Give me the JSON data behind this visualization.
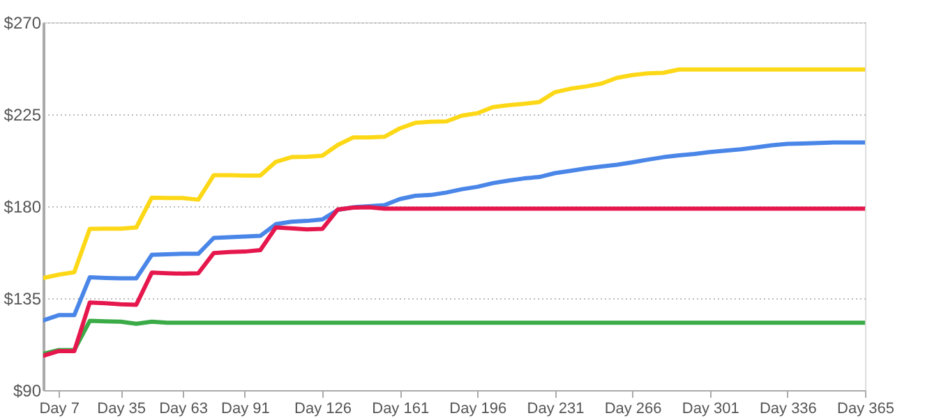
{
  "chart_data": {
    "type": "line",
    "categories": [
      null,
      "Day 7",
      null,
      null,
      null,
      "Day 35",
      null,
      null,
      null,
      "Day 63",
      null,
      null,
      null,
      "Day 91",
      null,
      null,
      null,
      null,
      "Day 126",
      null,
      null,
      null,
      null,
      "Day 161",
      null,
      null,
      null,
      null,
      "Day 196",
      null,
      null,
      null,
      null,
      "Day 231",
      null,
      null,
      null,
      null,
      "Day 266",
      null,
      null,
      null,
      null,
      "Day 301",
      null,
      null,
      null,
      null,
      "Day 336",
      null,
      null,
      null,
      null,
      "Day 365"
    ],
    "series": [
      {
        "color": "#fdd817",
        "values": [
          144.9,
          146.5,
          147.7,
          168.9,
          169,
          169,
          169.6,
          184.2,
          184,
          184,
          183.2,
          195.2,
          195.2,
          195,
          195,
          201.7,
          204,
          204.2,
          204.7,
          210,
          213.7,
          213.7,
          214,
          218.1,
          220.8,
          221.3,
          221.5,
          224.3,
          225.5,
          228.5,
          229.4,
          230.1,
          231,
          235.8,
          237.5,
          238.6,
          240,
          242.8,
          244.2,
          245,
          245.3,
          246.9,
          246.9,
          246.9,
          246.9,
          246.9,
          246.9,
          246.9,
          246.9,
          246.9,
          246.9,
          246.9,
          246.9,
          246.9
        ]
      },
      {
        "color": "#4a86e8",
        "values": [
          124.1,
          126.7,
          126.7,
          145.2,
          144.9,
          144.7,
          144.7,
          156.2,
          156.5,
          156.7,
          156.7,
          164.5,
          164.8,
          165.2,
          165.5,
          171.2,
          172.4,
          172.8,
          173.5,
          178.2,
          179.5,
          180,
          180.5,
          183.5,
          185.1,
          185.5,
          186.7,
          188.3,
          189.5,
          191.3,
          192.5,
          193.6,
          194.3,
          196.2,
          197.3,
          198.5,
          199.4,
          200.3,
          201.5,
          202.8,
          204,
          204.9,
          205.6,
          206.5,
          207.2,
          207.9,
          208.8,
          209.8,
          210.5,
          210.7,
          210.9,
          211.2,
          211.2,
          211.2
        ]
      },
      {
        "color": "#3aab47",
        "values": [
          107.8,
          109.6,
          109.6,
          123.9,
          123.7,
          123.5,
          122.5,
          123.5,
          123,
          123,
          123,
          123,
          123,
          123,
          123,
          123,
          123,
          123,
          123,
          123,
          123,
          123,
          123,
          123,
          123,
          123,
          123,
          123,
          123,
          123,
          123,
          123,
          123,
          123,
          123,
          123,
          123,
          123,
          123,
          123,
          123,
          123,
          123,
          123,
          123,
          123,
          123,
          123,
          123,
          123,
          123,
          123,
          123,
          123
        ]
      },
      {
        "color": "#e5174d",
        "values": [
          106.8,
          109.1,
          109.1,
          132.9,
          132.5,
          132,
          131.8,
          147.5,
          147.2,
          147,
          147.2,
          157.1,
          157.6,
          157.8,
          158.5,
          169.6,
          169.2,
          168.7,
          168.9,
          178.4,
          179.3,
          179.5,
          178.8,
          178.8,
          178.8,
          178.8,
          178.8,
          178.8,
          178.8,
          178.8,
          178.8,
          178.8,
          178.8,
          178.8,
          178.8,
          178.8,
          178.8,
          178.8,
          178.8,
          178.8,
          178.8,
          178.8,
          178.8,
          178.8,
          178.8,
          178.8,
          178.8,
          178.8,
          178.8,
          178.8,
          178.8,
          178.8,
          178.8,
          178.8
        ]
      }
    ],
    "ylim": [
      90,
      270
    ],
    "yticks": [
      {
        "value": 90,
        "label": "$90"
      },
      {
        "value": 135,
        "label": "$135"
      },
      {
        "value": 180,
        "label": "$180"
      },
      {
        "value": 225,
        "label": "$225"
      },
      {
        "value": 270,
        "label": "$270"
      }
    ],
    "grid": "y",
    "legend": false,
    "marker": "none",
    "line_style": "solid"
  }
}
